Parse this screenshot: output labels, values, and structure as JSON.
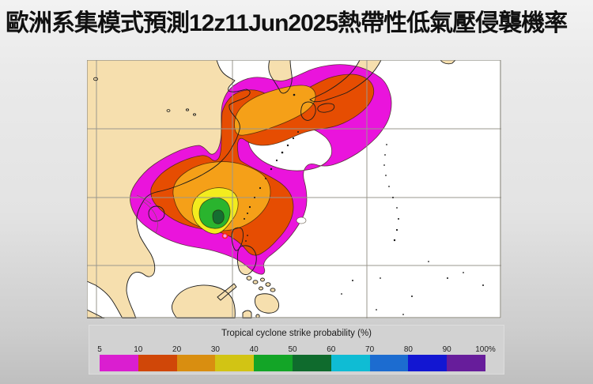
{
  "title": "歐洲系集模式預測12z11Jun2025熱帶性低氣壓侵襲機率",
  "map": {
    "sea_color": "#ffffff",
    "land_color": "#f6dfae",
    "grid_color": "#9a978e",
    "border_color": "#8a887f",
    "coast_color": "#1b1b1b",
    "marker_color": "#ff2020",
    "contour_colors": {
      "p5": "#ea14dc",
      "p10": "#e64d02",
      "p20": "#f5a018",
      "p30": "#f3ec1e",
      "p40": "#2ab42e",
      "p50": "#156e31"
    }
  },
  "legend": {
    "title": "Tropical cyclone strike probability (%)",
    "tick_labels": [
      "5",
      "10",
      "20",
      "30",
      "40",
      "50",
      "60",
      "70",
      "80",
      "90",
      "100%"
    ],
    "colors": [
      "#da1ed0",
      "#d04708",
      "#d98e10",
      "#d2c414",
      "#13a527",
      "#0f6b2d",
      "#0fbcd4",
      "#1c6cd0",
      "#1216d2",
      "#671d9b"
    ]
  },
  "map_data": {
    "type": "contour-probability-map",
    "quantity": "tropical cyclone strike probability (%)",
    "contour_levels_percent_shown": [
      5,
      10,
      20,
      30,
      40,
      50
    ],
    "max_band_percent": "50-60",
    "regions": [
      "main maximum northeast of Taiwan / Luzon Strait (dark green 50-60%)",
      "secondary 20-30% band over Korea Strait and western Japan",
      "5% magenta envelope from South China Sea to seas east of Japan"
    ],
    "marker": "current tropical depression position near 21N 121E"
  }
}
